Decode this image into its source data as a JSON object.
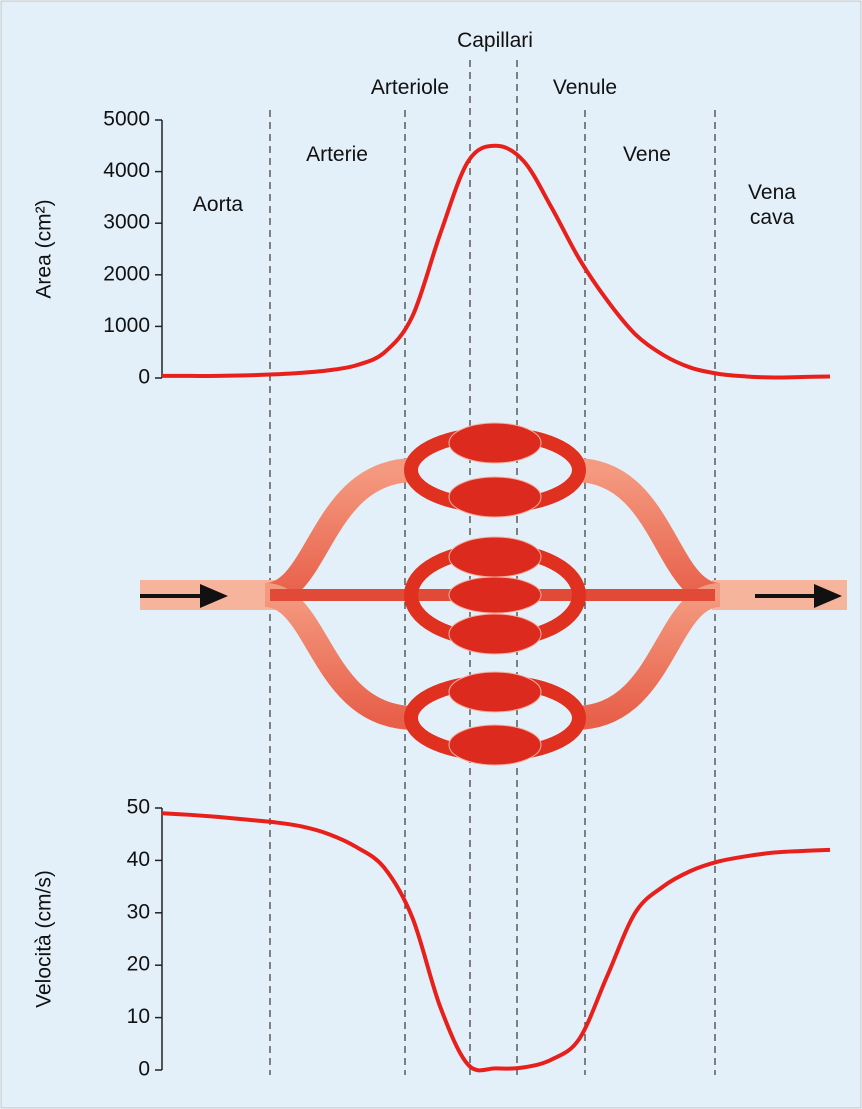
{
  "regions": [
    "Aorta",
    "Arterie",
    "Arteriole",
    "Capillari",
    "Venule",
    "Vene",
    "Vena cava"
  ],
  "chart_data": [
    {
      "type": "line",
      "y_label": "Area (cm²)",
      "color": "#e8201c",
      "values": [
        40,
        40,
        40,
        50,
        70,
        100,
        150,
        250,
        500,
        1200,
        2800,
        4200,
        4500,
        4200,
        3300,
        2300,
        1500,
        850,
        450,
        200,
        80,
        30,
        10,
        20,
        30
      ],
      "ylim": [
        0,
        5000
      ],
      "yticks": [
        0,
        1000,
        2000,
        3000,
        4000,
        5000
      ]
    },
    {
      "type": "line",
      "y_label": "Velocità (cm/s)",
      "color": "#e8201c",
      "values": [
        49,
        48.7,
        48.3,
        47.8,
        47.3,
        46.5,
        45,
        42.5,
        38.5,
        29,
        12,
        1,
        0.3,
        0.5,
        2,
        6,
        18,
        30,
        35,
        38,
        39.8,
        40.8,
        41.5,
        41.8,
        42
      ],
      "ylim": [
        0,
        50
      ],
      "yticks": [
        0,
        10,
        20,
        30,
        40,
        50
      ]
    }
  ]
}
